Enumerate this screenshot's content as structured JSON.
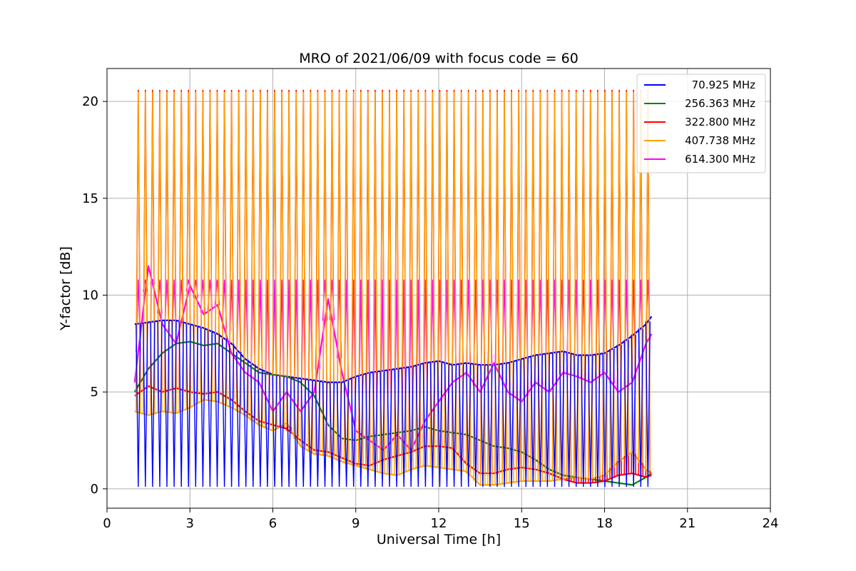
{
  "chart_data": {
    "type": "line",
    "title": "MRO of 2021/06/09 with focus code = 60",
    "xlabel": "Universal Time [h]",
    "ylabel": "Y-factor [dB]",
    "xlim": [
      0,
      24
    ],
    "ylim": [
      -1.0,
      21.7
    ],
    "xticks": [
      0,
      3,
      6,
      9,
      12,
      15,
      18,
      21,
      24
    ],
    "yticks": [
      0,
      5,
      10,
      15,
      20
    ],
    "grid": true,
    "legend_position": "top-right",
    "x_range_of_data": [
      1.0,
      19.7
    ],
    "series": [
      {
        "name": "70.925 MHz",
        "color": "#0000ff",
        "pattern": "periodic calibration dips to ~0.1 dB",
        "x": [
          1.0,
          1.5,
          2.0,
          2.5,
          3.0,
          3.5,
          4.0,
          4.5,
          5.0,
          5.5,
          6.0,
          6.5,
          7.0,
          7.5,
          8.0,
          8.5,
          9.0,
          9.5,
          10.0,
          10.5,
          11.0,
          11.5,
          12.0,
          12.5,
          13.0,
          13.5,
          14.0,
          14.5,
          15.0,
          15.5,
          16.0,
          16.5,
          17.0,
          17.5,
          18.0,
          18.5,
          19.0,
          19.5,
          19.7
        ],
        "values": [
          8.5,
          8.6,
          8.7,
          8.7,
          8.5,
          8.3,
          8.0,
          7.5,
          6.7,
          6.2,
          5.9,
          5.8,
          5.7,
          5.6,
          5.5,
          5.5,
          5.8,
          6.0,
          6.1,
          6.2,
          6.3,
          6.5,
          6.6,
          6.4,
          6.5,
          6.4,
          6.4,
          6.5,
          6.7,
          6.9,
          7.0,
          7.1,
          6.9,
          6.9,
          7.0,
          7.4,
          7.9,
          8.5,
          8.9
        ]
      },
      {
        "name": "256.363 MHz",
        "color": "#008000",
        "x": [
          1.0,
          1.5,
          2.0,
          2.5,
          3.0,
          3.5,
          4.0,
          4.5,
          5.0,
          5.5,
          6.0,
          6.5,
          7.0,
          7.5,
          8.0,
          8.5,
          9.0,
          9.5,
          10.0,
          10.5,
          11.0,
          11.5,
          12.0,
          12.5,
          13.0,
          13.5,
          14.0,
          14.5,
          15.0,
          15.5,
          16.0,
          16.5,
          17.0,
          17.5,
          18.0,
          18.5,
          19.0,
          19.5,
          19.7
        ],
        "values": [
          5.0,
          6.2,
          7.0,
          7.5,
          7.6,
          7.4,
          7.5,
          7.0,
          6.5,
          6.0,
          5.9,
          5.8,
          5.5,
          4.8,
          3.3,
          2.6,
          2.5,
          2.7,
          2.8,
          2.9,
          3.0,
          3.2,
          3.0,
          2.9,
          2.8,
          2.5,
          2.2,
          2.1,
          1.9,
          1.5,
          1.0,
          0.7,
          0.6,
          0.5,
          0.4,
          0.3,
          0.2,
          0.6,
          0.8
        ]
      },
      {
        "name": "322.800 MHz",
        "color": "#ff0000",
        "pattern": "periodic calibration peaks to ~20.6 dB",
        "x": [
          1.0,
          1.5,
          2.0,
          2.5,
          3.0,
          3.5,
          4.0,
          4.5,
          5.0,
          5.5,
          6.0,
          6.5,
          7.0,
          7.5,
          8.0,
          8.5,
          9.0,
          9.5,
          10.0,
          10.5,
          11.0,
          11.5,
          12.0,
          12.5,
          13.0,
          13.5,
          14.0,
          14.5,
          15.0,
          15.5,
          16.0,
          16.5,
          17.0,
          17.5,
          18.0,
          18.5,
          19.0,
          19.5,
          19.7
        ],
        "values": [
          4.8,
          5.3,
          5.0,
          5.2,
          5.0,
          4.9,
          5.0,
          4.6,
          4.0,
          3.5,
          3.3,
          3.1,
          2.5,
          2.0,
          1.9,
          1.6,
          1.3,
          1.2,
          1.5,
          1.7,
          1.9,
          2.2,
          2.2,
          2.1,
          1.3,
          0.8,
          0.8,
          1.0,
          1.1,
          1.0,
          0.8,
          0.5,
          0.3,
          0.3,
          0.4,
          0.7,
          0.8,
          0.6,
          0.7
        ]
      },
      {
        "name": "407.738 MHz",
        "color": "#ffa500",
        "pattern": "periodic calibration peaks to ~20.5 dB",
        "x": [
          1.0,
          1.5,
          2.0,
          2.5,
          3.0,
          3.5,
          4.0,
          4.5,
          5.0,
          5.5,
          6.0,
          6.5,
          7.0,
          7.5,
          8.0,
          8.5,
          9.0,
          9.5,
          10.0,
          10.5,
          11.0,
          11.5,
          12.0,
          12.5,
          13.0,
          13.5,
          14.0,
          14.5,
          15.0,
          15.5,
          16.0,
          16.5,
          17.0,
          17.5,
          18.0,
          18.5,
          19.0,
          19.5,
          19.7
        ],
        "values": [
          4.0,
          3.8,
          4.0,
          3.9,
          4.2,
          4.6,
          4.5,
          4.2,
          3.8,
          3.3,
          3.0,
          3.4,
          2.2,
          1.8,
          1.7,
          1.4,
          1.2,
          1.0,
          0.8,
          0.7,
          1.0,
          1.2,
          1.1,
          1.0,
          0.9,
          0.2,
          0.2,
          0.3,
          0.4,
          0.4,
          0.4,
          0.5,
          0.6,
          0.5,
          0.7,
          1.4,
          1.9,
          1.0,
          0.8
        ]
      },
      {
        "name": "614.300 MHz",
        "color": "#ff00ff",
        "pattern": "periodic calibration peaks to ~10.8 dB",
        "x": [
          1.0,
          1.5,
          2.0,
          2.5,
          3.0,
          3.5,
          4.0,
          4.5,
          5.0,
          5.5,
          6.0,
          6.5,
          7.0,
          7.5,
          8.0,
          8.5,
          9.0,
          9.5,
          10.0,
          10.5,
          11.0,
          11.5,
          12.0,
          12.5,
          13.0,
          13.5,
          14.0,
          14.5,
          15.0,
          15.5,
          16.0,
          16.5,
          17.0,
          17.5,
          18.0,
          18.5,
          19.0,
          19.5,
          19.7
        ],
        "values": [
          5.5,
          11.5,
          8.5,
          7.5,
          10.5,
          9.0,
          9.5,
          7.0,
          6.0,
          5.5,
          4.0,
          5.0,
          4.0,
          5.0,
          9.8,
          6.0,
          3.0,
          2.5,
          2.0,
          2.8,
          2.0,
          3.5,
          4.5,
          5.5,
          6.0,
          5.0,
          6.5,
          5.0,
          4.5,
          5.5,
          5.0,
          6.0,
          5.8,
          5.5,
          6.0,
          5.0,
          5.5,
          7.5,
          8.0
        ]
      }
    ]
  }
}
